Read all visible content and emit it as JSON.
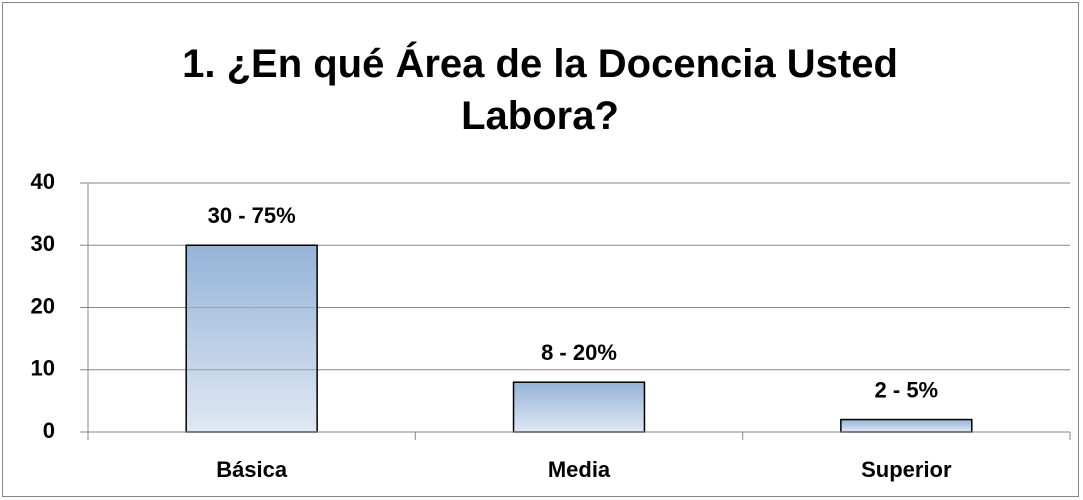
{
  "chart_data": {
    "type": "bar",
    "title": "1.    ¿En qué Área de la Docencia Usted Labora?",
    "categories": [
      "Básica",
      "Media",
      "Superior"
    ],
    "values": [
      30,
      8,
      2
    ],
    "value_labels": [
      "30 - 75%",
      "8 - 20%",
      "2 - 5%"
    ],
    "color": "#95b3d7",
    "ylim": [
      0,
      40
    ],
    "yticks": [
      0,
      10,
      20,
      30,
      40
    ],
    "grid": true
  }
}
